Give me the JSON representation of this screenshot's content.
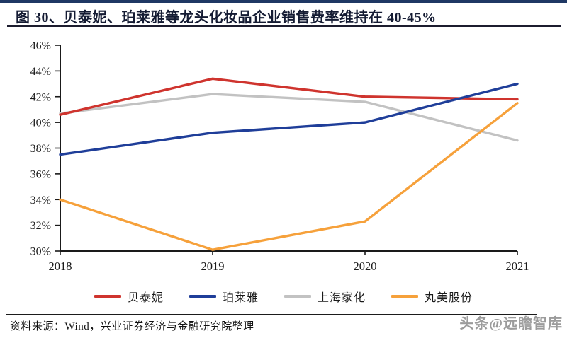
{
  "header": {
    "title": "图 30、贝泰妮、珀莱雅等龙头化妆品企业销售费率维持在 40-45%"
  },
  "chart_data": {
    "type": "line",
    "title": "图 30、贝泰妮、珀莱雅等龙头化妆品企业销售费率维持在 40-45%",
    "categories": [
      "2018",
      "2019",
      "2020",
      "2021"
    ],
    "series": [
      {
        "name": "贝泰妮",
        "color": "#cf342e",
        "values": [
          40.6,
          43.4,
          42.0,
          41.8
        ]
      },
      {
        "name": "珀莱雅",
        "color": "#1f3e99",
        "values": [
          37.5,
          39.2,
          40.0,
          43.0
        ]
      },
      {
        "name": "上海家化",
        "color": "#c2c2c2",
        "values": [
          40.7,
          42.2,
          41.6,
          38.6
        ]
      },
      {
        "name": "丸美股份",
        "color": "#f6a13b",
        "values": [
          34.0,
          30.1,
          32.3,
          41.5
        ]
      }
    ],
    "ylim": [
      30,
      46
    ],
    "ytick_step": 2,
    "ytick_labels": [
      "30%",
      "32%",
      "34%",
      "36%",
      "38%",
      "40%",
      "42%",
      "44%",
      "46%"
    ],
    "xlabel": "",
    "ylabel": "",
    "grid": false,
    "legend_position": "bottom"
  },
  "footer": {
    "source": "资料来源：Wind，兴业证券经济与金融研究院整理",
    "watermark": "头条@远瞻智库"
  }
}
